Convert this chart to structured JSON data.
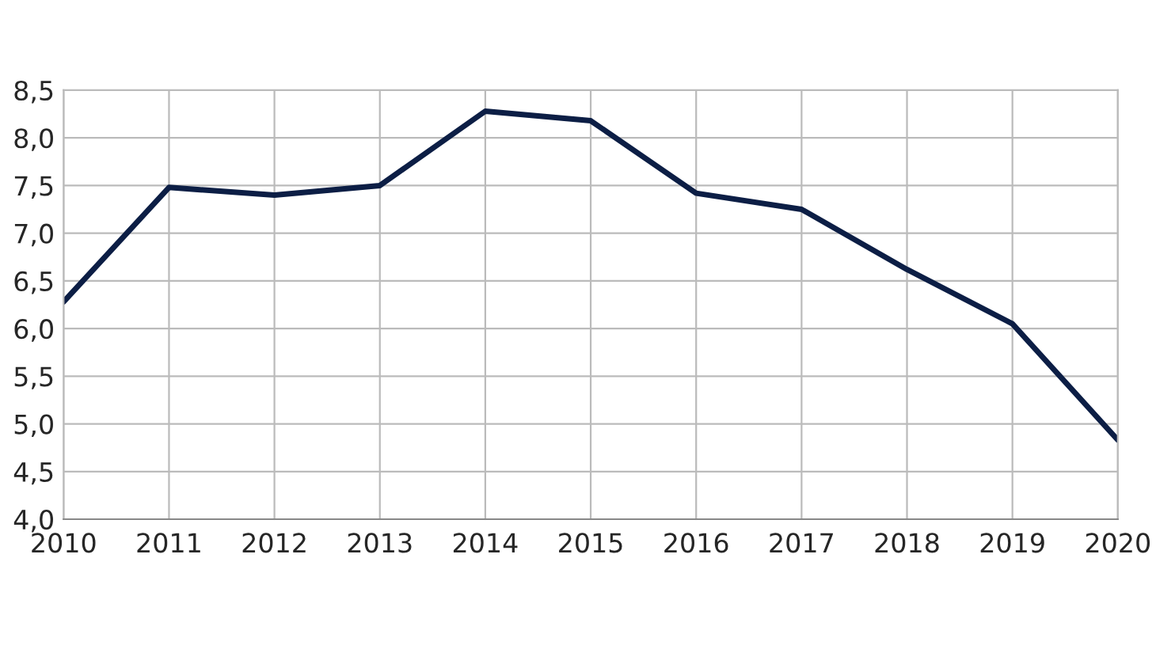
{
  "chart_data": {
    "type": "line",
    "x": [
      2010,
      2011,
      2012,
      2013,
      2014,
      2015,
      2016,
      2017,
      2018,
      2019,
      2020
    ],
    "series": [
      {
        "color": "#0c1e45",
        "values": [
          6.28,
          7.48,
          7.4,
          7.5,
          8.28,
          8.18,
          7.42,
          7.25,
          6.62,
          6.05,
          4.83
        ]
      }
    ],
    "xlim": [
      2010,
      2020
    ],
    "xticks": [
      2010,
      2011,
      2012,
      2013,
      2014,
      2015,
      2016,
      2017,
      2018,
      2019,
      2020
    ],
    "ylim": [
      4.0,
      8.5
    ],
    "yticks": [
      {
        "value": 4.0,
        "label": "4,0"
      },
      {
        "value": 4.5,
        "label": "4,5"
      },
      {
        "value": 5.0,
        "label": "5,0"
      },
      {
        "value": 5.5,
        "label": "5,5"
      },
      {
        "value": 6.0,
        "label": "6,0"
      },
      {
        "value": 6.5,
        "label": "6,5"
      },
      {
        "value": 7.0,
        "label": "7,0"
      },
      {
        "value": 7.5,
        "label": "7,5"
      },
      {
        "value": 8.0,
        "label": "8,0"
      },
      {
        "value": 8.5,
        "label": "8,5"
      }
    ],
    "grid": true,
    "marker": "none",
    "line_style": "solid"
  }
}
